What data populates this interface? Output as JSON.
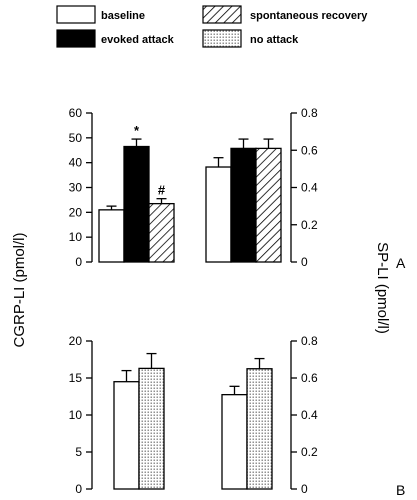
{
  "legend": {
    "items": [
      {
        "key": "baseline",
        "label": "baseline",
        "fill": "none"
      },
      {
        "key": "evoked",
        "label": "evoked attack",
        "fill": "solid"
      },
      {
        "key": "spont",
        "label": "spontaneous recovery",
        "fill": "hatch"
      },
      {
        "key": "noattack",
        "label": "no attack",
        "fill": "dots"
      }
    ]
  },
  "axes": {
    "left_title": "CGRP-LI (pmol/l)",
    "right_title": "SP-LI (pmol/l)"
  },
  "panels": {
    "A": "A",
    "B": "B"
  },
  "chart_data": [
    {
      "type": "bar",
      "panel": "A",
      "measure": "CGRP-LI",
      "ylim": [
        0,
        60
      ],
      "yticks": [
        "0",
        "10",
        "20",
        "30",
        "40",
        "50",
        "60"
      ],
      "yaxis_side": "left",
      "bars": [
        {
          "series": "baseline",
          "value": 21,
          "error": 1.5
        },
        {
          "series": "evoked",
          "value": 46.5,
          "error": 3
        },
        {
          "series": "spont",
          "value": 23.5,
          "error": 2
        }
      ],
      "annotations": [
        {
          "on": "evoked",
          "text": "*"
        },
        {
          "on": "spont",
          "text": "#"
        }
      ]
    },
    {
      "type": "bar",
      "panel": "A",
      "measure": "SP-LI",
      "ylim": [
        0,
        0.8
      ],
      "yticks": [
        "0",
        "0.2",
        "0.4",
        "0.6",
        "0.8"
      ],
      "yaxis_side": "right",
      "bars": [
        {
          "series": "baseline",
          "value": 0.51,
          "error": 0.05
        },
        {
          "series": "evoked",
          "value": 0.61,
          "error": 0.05
        },
        {
          "series": "spont",
          "value": 0.61,
          "error": 0.05
        }
      ]
    },
    {
      "type": "bar",
      "panel": "B",
      "measure": "CGRP-LI",
      "ylim": [
        0,
        20
      ],
      "yticks": [
        "0",
        "5",
        "10",
        "15",
        "20"
      ],
      "yaxis_side": "left",
      "bars": [
        {
          "series": "baseline",
          "value": 14.5,
          "error": 1.5
        },
        {
          "series": "noattack",
          "value": 16.3,
          "error": 2
        }
      ]
    },
    {
      "type": "bar",
      "panel": "B",
      "measure": "SP-LI",
      "ylim": [
        0,
        0.8
      ],
      "yticks": [
        "0",
        "0.2",
        "0.4",
        "0.6",
        "0.8"
      ],
      "yaxis_side": "right",
      "bars": [
        {
          "series": "baseline",
          "value": 0.51,
          "error": 0.045
        },
        {
          "series": "noattack",
          "value": 0.65,
          "error": 0.055
        }
      ]
    }
  ]
}
